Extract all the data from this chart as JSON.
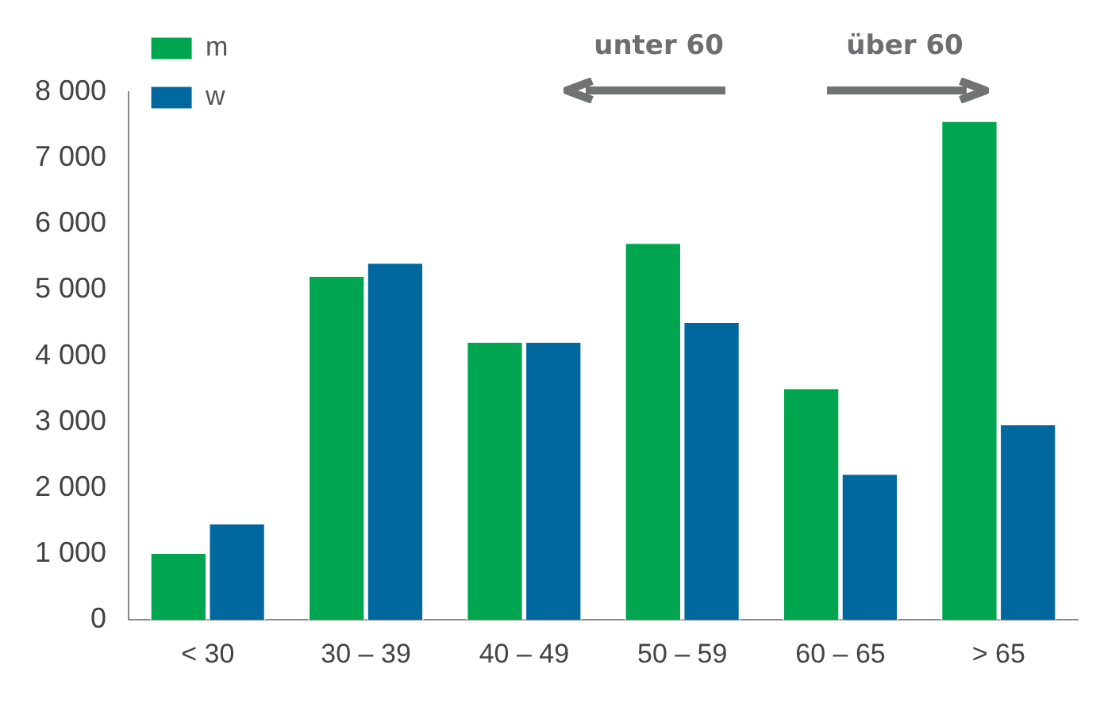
{
  "chart_data": {
    "type": "bar",
    "categories": [
      "< 30",
      "30 – 39",
      "40 – 49",
      "50 – 59",
      "60 – 65",
      "> 65"
    ],
    "series": [
      {
        "name": "m",
        "color": "#00a54f",
        "values": [
          1000,
          5200,
          4200,
          5700,
          3500,
          7550
        ]
      },
      {
        "name": "w",
        "color": "#00689e",
        "values": [
          1450,
          5400,
          4200,
          4500,
          2200,
          2950
        ]
      }
    ],
    "ylim": [
      0,
      8000
    ],
    "yticks": [
      0,
      {
        "value": 1000,
        "label": "1 000"
      },
      {
        "value": 2000,
        "label": "2 000"
      },
      {
        "value": 3000,
        "label": "3 000"
      },
      {
        "value": 4000,
        "label": "4 000"
      },
      {
        "value": 5000,
        "label": "5 000"
      },
      {
        "value": 6000,
        "label": "6 000"
      },
      {
        "value": 7000,
        "label": "7 000"
      },
      {
        "value": 8000,
        "label": "8 000"
      }
    ],
    "annotations": [
      "unter 60",
      "über 60"
    ],
    "grid": false,
    "legend": "top left"
  }
}
